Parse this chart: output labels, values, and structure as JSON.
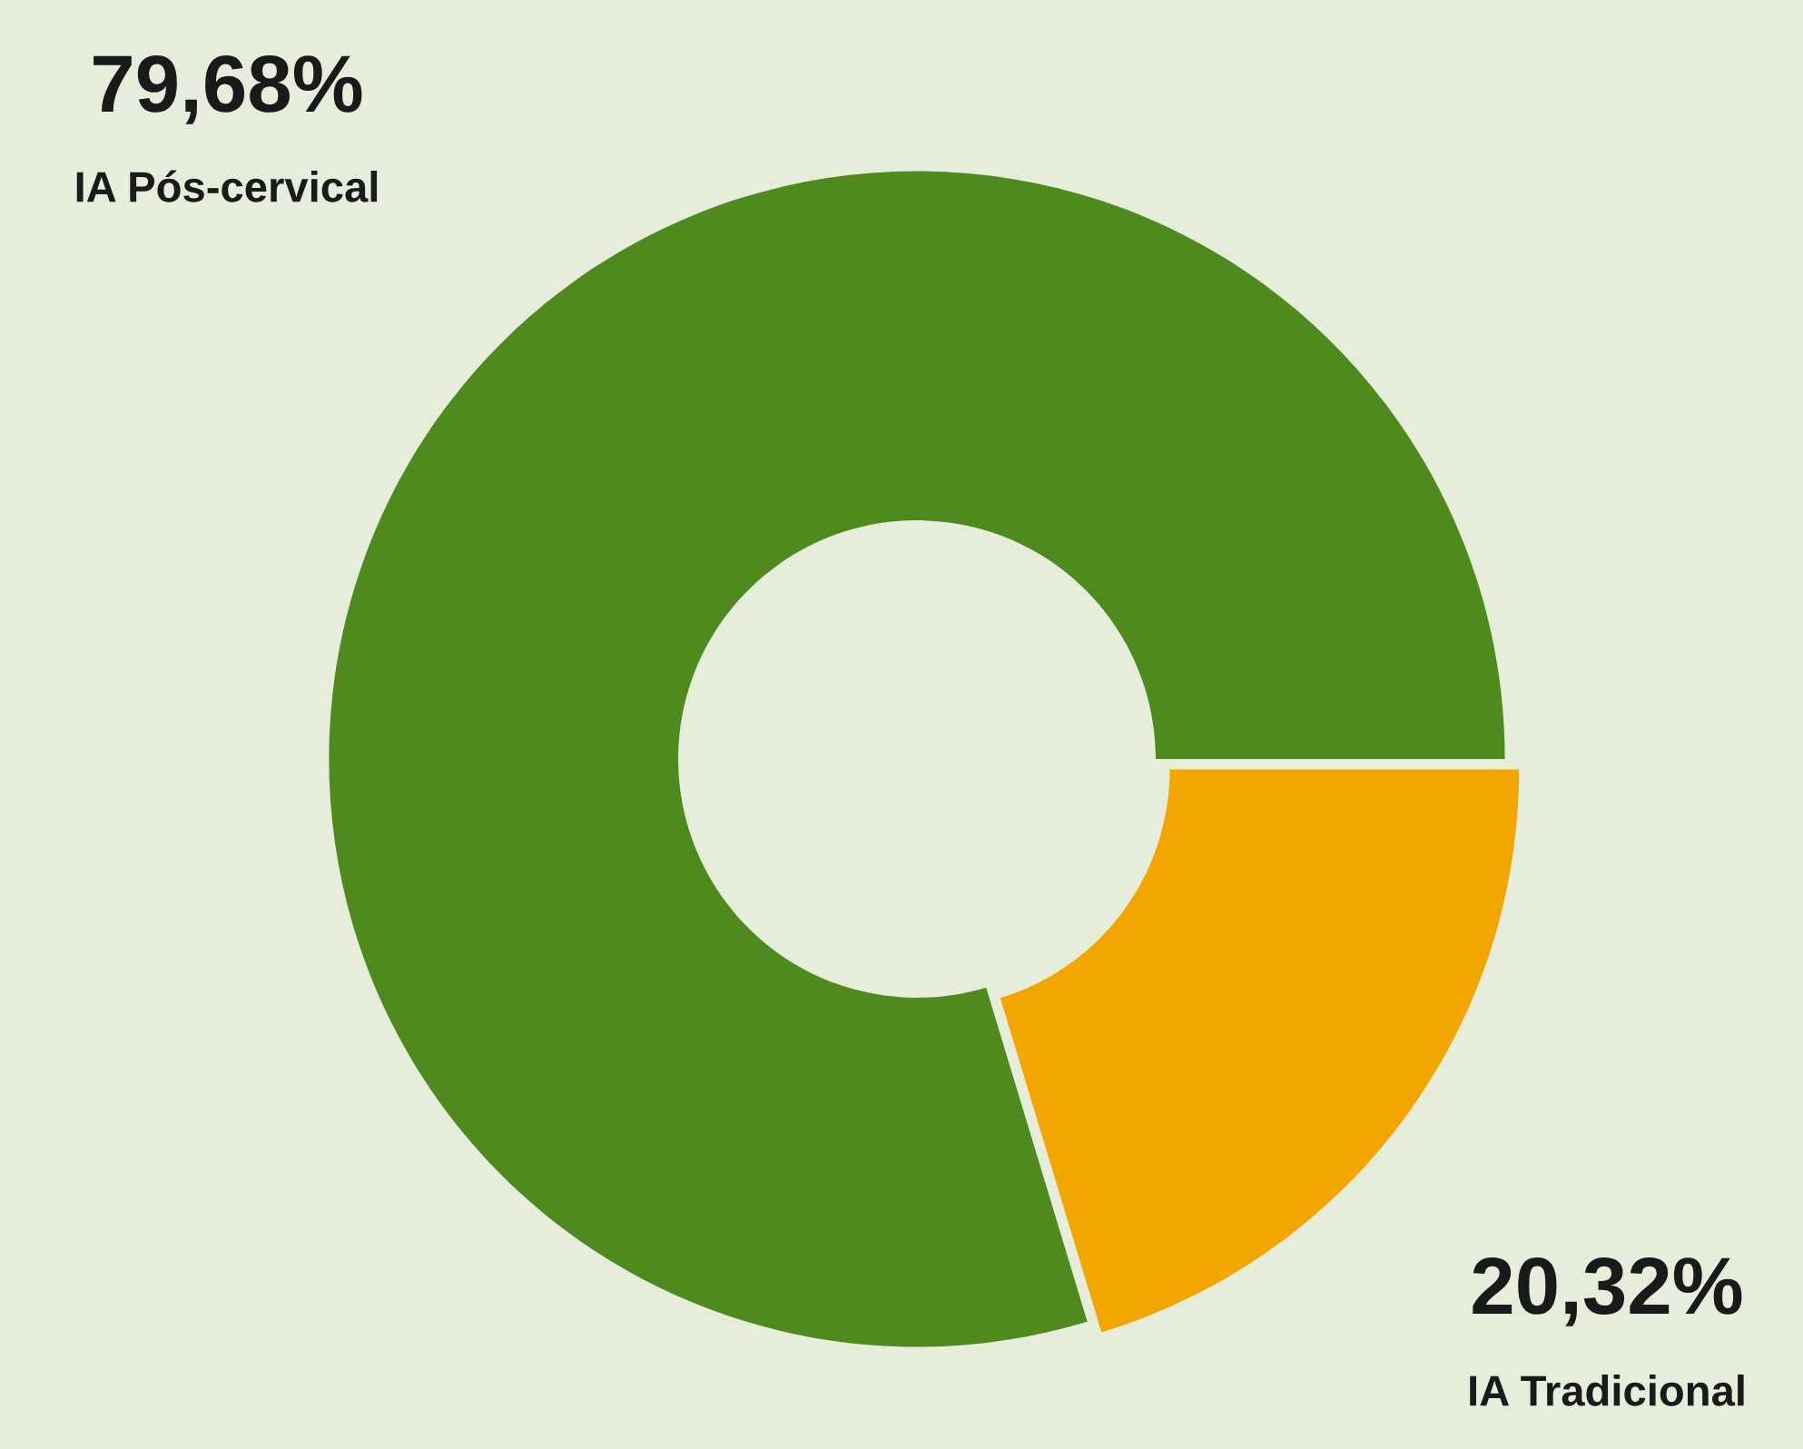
{
  "chart_data": {
    "type": "donut",
    "categories": [
      "IA Pós-cervical",
      "IA Tradicional"
    ],
    "values": [
      79.68,
      20.32
    ],
    "colors": [
      "#4e8a1e",
      "#f4a600"
    ],
    "value_labels": [
      "79,68%",
      "20,32%"
    ],
    "legend": false
  }
}
